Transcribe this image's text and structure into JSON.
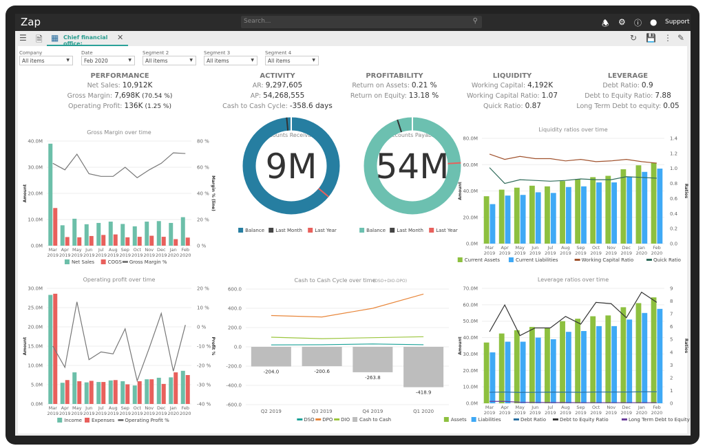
{
  "app": {
    "logo": "Zap",
    "search_placeholder": "Search...",
    "support_label": "Support",
    "tab_label": "Chief financial office:",
    "icons": [
      "bell-icon",
      "gear-icon",
      "help-icon",
      "user-icon",
      "refresh-icon",
      "save-icon",
      "more-icon",
      "edit-icon"
    ]
  },
  "filters": [
    {
      "label": "Company",
      "value": "All items"
    },
    {
      "label": "Date",
      "value": "Feb 2020"
    },
    {
      "label": "Segment 2",
      "value": "All items"
    },
    {
      "label": "Segment 3",
      "value": "All items"
    },
    {
      "label": "Segment 4",
      "value": "All items"
    }
  ],
  "kpis": [
    {
      "title": "PERFORMANCE",
      "rows": [
        {
          "k": "Net Sales:",
          "v": "10,912K",
          "x": ""
        },
        {
          "k": "Gross Margin:",
          "v": "7,698K",
          "x": "(70.54 %)"
        },
        {
          "k": "Operating Profit:",
          "v": "136K",
          "x": "(1.25 %)"
        }
      ]
    },
    {
      "title": "ACTIVITY",
      "rows": [
        {
          "k": "AR:",
          "v": "9,297,605",
          "x": ""
        },
        {
          "k": "AP:",
          "v": "54,268,555",
          "x": ""
        },
        {
          "k": "Cash to Cash Cycle:",
          "v": "-358.6 days",
          "x": ""
        }
      ]
    },
    {
      "title": "PROFITABILITY",
      "rows": [
        {
          "k": "Return on Assets:",
          "v": "0.21 %",
          "x": ""
        },
        {
          "k": "Return on Equity:",
          "v": "13.18 %",
          "x": ""
        }
      ]
    },
    {
      "title": "LIQUIDITY",
      "rows": [
        {
          "k": "Working Capital:",
          "v": "4,192K",
          "x": ""
        },
        {
          "k": "Working Capital Ratio:",
          "v": "1.07",
          "x": ""
        },
        {
          "k": "Quick Ratio:",
          "v": "0.87",
          "x": ""
        }
      ]
    },
    {
      "title": "LEVERAGE",
      "rows": [
        {
          "k": "Debt Ratio:",
          "v": "0.9",
          "x": ""
        },
        {
          "k": "Debt to Equity Ratio:",
          "v": "7.88",
          "x": ""
        },
        {
          "k": "Long Term Debt to equity:",
          "v": "0.05",
          "x": ""
        }
      ]
    }
  ],
  "donuts": [
    {
      "title": "Accounts Receivable",
      "value": "9M",
      "color": "#267ea1",
      "last_month_fraction": 0.985,
      "last_year_fraction": 0.36,
      "legend": [
        "Balance",
        "Last Month",
        "Last Year"
      ]
    },
    {
      "title": "Accounts Payable",
      "value": "54M",
      "color": "#6cc0b0",
      "last_month_fraction": 0.95,
      "last_year_fraction": 0.24,
      "legend": [
        "Balance",
        "Last Month",
        "Last Year"
      ]
    }
  ],
  "chart_data": [
    {
      "id": "gm",
      "type": "bar",
      "title": "Gross Margin over time",
      "ylabel": "Amount",
      "y2label": "Margin % (line)",
      "categories": [
        "Mar 2019",
        "Apr 2019",
        "May 2019",
        "Jun 2019",
        "Jul 2019",
        "Aug 2019",
        "Sep 2019",
        "Oct 2019",
        "Nov 2019",
        "Dec 2019",
        "Jan 2020",
        "Feb 2020"
      ],
      "ylim": [
        0,
        40
      ],
      "y_ticks": [
        "0.0M",
        "10.0M",
        "20.0M",
        "30.0M",
        "40.0M"
      ],
      "y2lim": [
        0,
        80
      ],
      "y2_ticks": [
        "0 %",
        "20 %",
        "40 %",
        "60 %",
        "80 %"
      ],
      "series": [
        {
          "name": "Net Sales",
          "type": "bar",
          "color": "#6cbfa9",
          "values": [
            39,
            7.8,
            10.3,
            8.2,
            8.7,
            9.2,
            8.3,
            7.4,
            9.2,
            9.4,
            8.7,
            10.9
          ]
        },
        {
          "name": "COGS",
          "type": "bar",
          "color": "#e8605c",
          "values": [
            14.4,
            3.3,
            3.2,
            3.7,
            4.1,
            4.3,
            3.2,
            3.4,
            3.8,
            3.4,
            2.5,
            3.1
          ]
        },
        {
          "name": "Gross Margin %",
          "type": "line",
          "axis": "right",
          "color": "#777777",
          "values": [
            63,
            58,
            70,
            55,
            53,
            53,
            60,
            52,
            58,
            63,
            71,
            70.5
          ]
        }
      ]
    },
    {
      "id": "liq",
      "type": "bar",
      "title": "Liquidity ratios over time",
      "ylabel": "Amount",
      "y2label": "Ratios",
      "categories": [
        "Mar 2019",
        "Apr 2019",
        "May 2019",
        "Jun 2019",
        "Jul 2019",
        "Aug 2019",
        "Sep 2019",
        "Oct 2019",
        "Nov 2019",
        "Dec 2019",
        "Jan 2020",
        "Feb 2020"
      ],
      "ylim": [
        0,
        80
      ],
      "y_ticks": [
        "0.0M",
        "20.0M",
        "40.0M",
        "60.0M",
        "80.0M"
      ],
      "y2lim": [
        0,
        1.4
      ],
      "y2_ticks": [
        "0.0",
        "0.2",
        "0.4",
        "0.6",
        "0.8",
        "1.0",
        "1.2",
        "1.4"
      ],
      "series": [
        {
          "name": "Current Assets",
          "type": "bar",
          "color": "#8dc03f",
          "values": [
            36,
            41,
            42.5,
            44,
            43.5,
            47.5,
            49,
            50.5,
            51.5,
            56.5,
            59.5,
            61.5
          ]
        },
        {
          "name": "Current Liabilities",
          "type": "bar",
          "color": "#3fa9f5",
          "values": [
            30,
            36.5,
            37,
            39,
            38.5,
            43,
            43.5,
            46.5,
            46.5,
            50.5,
            54.5,
            57
          ]
        },
        {
          "name": "Working Capital Ratio",
          "type": "line",
          "axis": "right",
          "color": "#a0522d",
          "values": [
            1.19,
            1.12,
            1.16,
            1.13,
            1.13,
            1.1,
            1.12,
            1.09,
            1.1,
            1.12,
            1.09,
            1.07
          ]
        },
        {
          "name": "Quick Ratio",
          "type": "line",
          "axis": "right",
          "color": "#2f6b5a",
          "values": [
            1.01,
            0.8,
            0.85,
            0.84,
            0.83,
            0.84,
            0.86,
            0.85,
            0.85,
            0.89,
            0.88,
            0.87
          ]
        }
      ]
    },
    {
      "id": "op",
      "type": "bar",
      "title": "Operating profit over time",
      "ylabel": "Amount",
      "y2label": "Profit %",
      "categories": [
        "Mar 2019",
        "Apr 2019",
        "May 2019",
        "Jun 2019",
        "Jul 2019",
        "Aug 2019",
        "Sep 2019",
        "Oct 2019",
        "Nov 2019",
        "Dec 2019",
        "Jan 2020",
        "Feb 2020"
      ],
      "ylim": [
        0,
        30
      ],
      "y_ticks": [
        "0.0M",
        "5.0M",
        "10.0M",
        "15.0M",
        "20.0M",
        "25.0M",
        "30.0M"
      ],
      "y2lim": [
        -40,
        20
      ],
      "y2_ticks": [
        "-40 %",
        "-30 %",
        "-20 %",
        "-10 %",
        "0 %",
        "10 %",
        "20 %"
      ],
      "series": [
        {
          "name": "Income",
          "type": "bar",
          "color": "#6cbfa9",
          "values": [
            28.3,
            5.5,
            8.2,
            5.6,
            5.7,
            6.1,
            5.9,
            4.8,
            6.4,
            6.8,
            6.9,
            8.6
          ]
        },
        {
          "name": "Expenses",
          "type": "bar",
          "color": "#e8605c",
          "values": [
            28.6,
            6.2,
            5.9,
            6.0,
            5.7,
            6.2,
            5.1,
            5.9,
            6.4,
            5.2,
            8.2,
            7.5
          ]
        },
        {
          "name": "Operating Profit %",
          "type": "line",
          "axis": "right",
          "color": "#777777",
          "values": [
            -10,
            -21,
            13,
            -17,
            -13,
            -14,
            -1,
            -28,
            -11,
            7,
            -23,
            1
          ]
        }
      ]
    },
    {
      "id": "c2c",
      "type": "bar",
      "title": "Cash to Cash Cycle over time",
      "subtitle": "(DSO+DIO-DPO)",
      "categories": [
        "Q2 2019",
        "Q3 2019",
        "Q4 2019",
        "Q1 2020"
      ],
      "ylim": [
        -600,
        600
      ],
      "y_ticks": [
        "-600.0",
        "-400.0",
        "-200.0",
        "0.0",
        "200.0",
        "400.0",
        "600.0"
      ],
      "data_labels": [
        "-204.0",
        "-200.6",
        "-263.8",
        "-418.9"
      ],
      "series": [
        {
          "name": "DSO",
          "type": "line",
          "color": "#1aa197",
          "values": [
            20,
            22,
            30,
            22
          ]
        },
        {
          "name": "DPO",
          "type": "line",
          "color": "#e8863a",
          "values": [
            325,
            310,
            400,
            548
          ]
        },
        {
          "name": "DIO",
          "type": "line",
          "color": "#9bc53d",
          "values": [
            100,
            85,
            95,
            105
          ]
        },
        {
          "name": "Cash to Cash",
          "type": "bar",
          "color": "#bdbdbd",
          "values": [
            -204,
            -200.6,
            -263.8,
            -418.9
          ]
        }
      ]
    },
    {
      "id": "lev",
      "type": "bar",
      "title": "Leverage ratios over time",
      "ylabel": "Amount",
      "y2label": "Ratios",
      "categories": [
        "Mar 2019",
        "Apr 2019",
        "May 2019",
        "Jun 2019",
        "Jul 2019",
        "Aug 2019",
        "Sep 2019",
        "Oct 2019",
        "Nov 2019",
        "Dec 2019",
        "Jan 2020",
        "Feb 2020"
      ],
      "ylim": [
        0,
        70
      ],
      "y_ticks": [
        "0.0M",
        "10.0M",
        "20.0M",
        "30.0M",
        "40.0M",
        "50.0M",
        "60.0M",
        "70.0M"
      ],
      "y2lim": [
        0,
        9
      ],
      "y2_ticks": [
        "0",
        "1",
        "2",
        "3",
        "4",
        "5",
        "6",
        "7",
        "8",
        "9"
      ],
      "series": [
        {
          "name": "Assets",
          "type": "bar",
          "color": "#8dc03f",
          "values": [
            37,
            42.5,
            44.5,
            46.5,
            46,
            50,
            51.5,
            53,
            53.5,
            58.5,
            61,
            64.5
          ]
        },
        {
          "name": "Liabilities",
          "type": "bar",
          "color": "#3fa9f5",
          "values": [
            31,
            37.5,
            37.5,
            40,
            39,
            43.5,
            44,
            47,
            47,
            51,
            55,
            57.5
          ]
        },
        {
          "name": "Debt Ratio",
          "type": "line",
          "axis": "right",
          "color": "#2a6fa0",
          "values": [
            0.86,
            0.88,
            0.85,
            0.86,
            0.87,
            0.87,
            0.86,
            0.88,
            0.88,
            0.88,
            0.9,
            0.9
          ]
        },
        {
          "name": "Debt to Equity Ratio",
          "type": "line",
          "axis": "right",
          "color": "#333333",
          "values": [
            5.6,
            7.7,
            5.3,
            5.9,
            5.9,
            6.8,
            6.2,
            7.9,
            7.8,
            6.7,
            8.7,
            7.9
          ]
        },
        {
          "name": "Long Term Debt to Equity",
          "type": "line",
          "axis": "right",
          "color": "#6a3d9a",
          "values": [
            0.15,
            0.15,
            0.08,
            0.07,
            0.06,
            0.06,
            0.05,
            0.05,
            0.05,
            0.05,
            0.05,
            0.05
          ]
        }
      ]
    }
  ]
}
